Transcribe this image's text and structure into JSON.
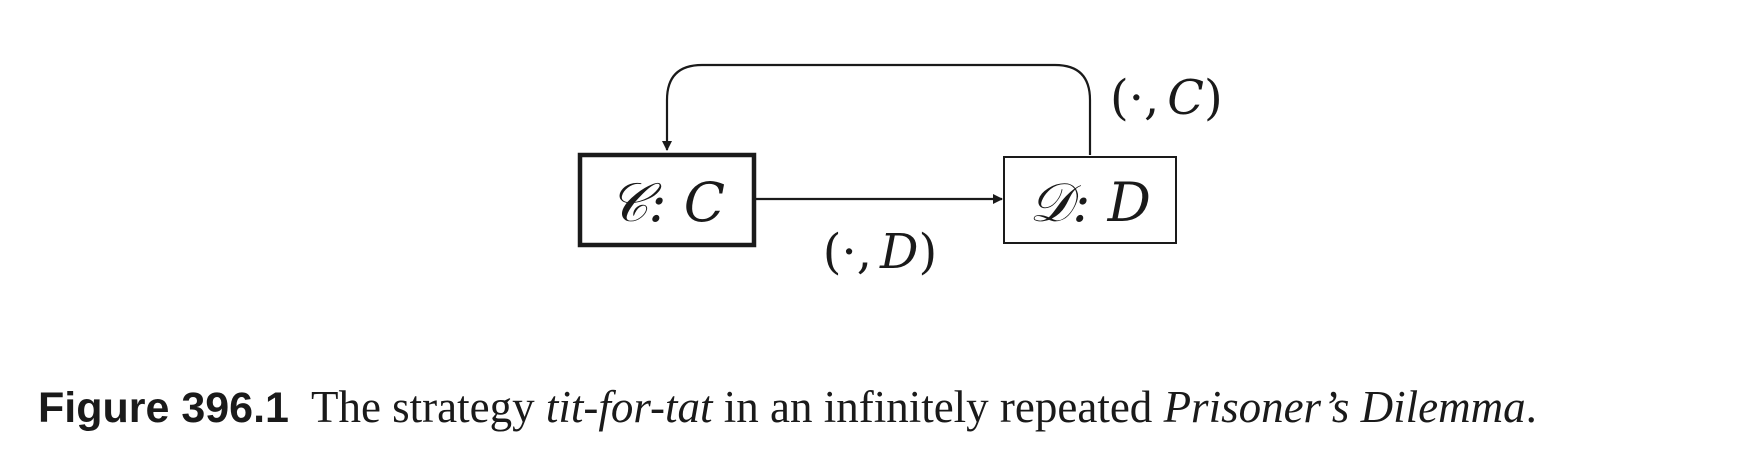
{
  "diagram": {
    "states": [
      {
        "label": "𝒞: C",
        "initial": true
      },
      {
        "label": "𝒟: D",
        "initial": false
      }
    ],
    "transitions": [
      {
        "from": "𝒞",
        "to": "𝒟",
        "label_open": "(",
        "label_dot": "·",
        "label_comma": ",",
        "label_symbol": "D",
        "label_close": ")"
      },
      {
        "from": "𝒟",
        "to": "𝒞",
        "label_open": "(",
        "label_dot": "·",
        "label_comma": ",",
        "label_symbol": "C",
        "label_close": ")"
      }
    ]
  },
  "caption": {
    "label": "Figure 396.1",
    "text_before": "The strategy ",
    "strategy": "tit-for-tat",
    "text_middle": " in an infinitely repeated ",
    "game": "Prisoner’s Dilemma",
    "text_after": "."
  }
}
